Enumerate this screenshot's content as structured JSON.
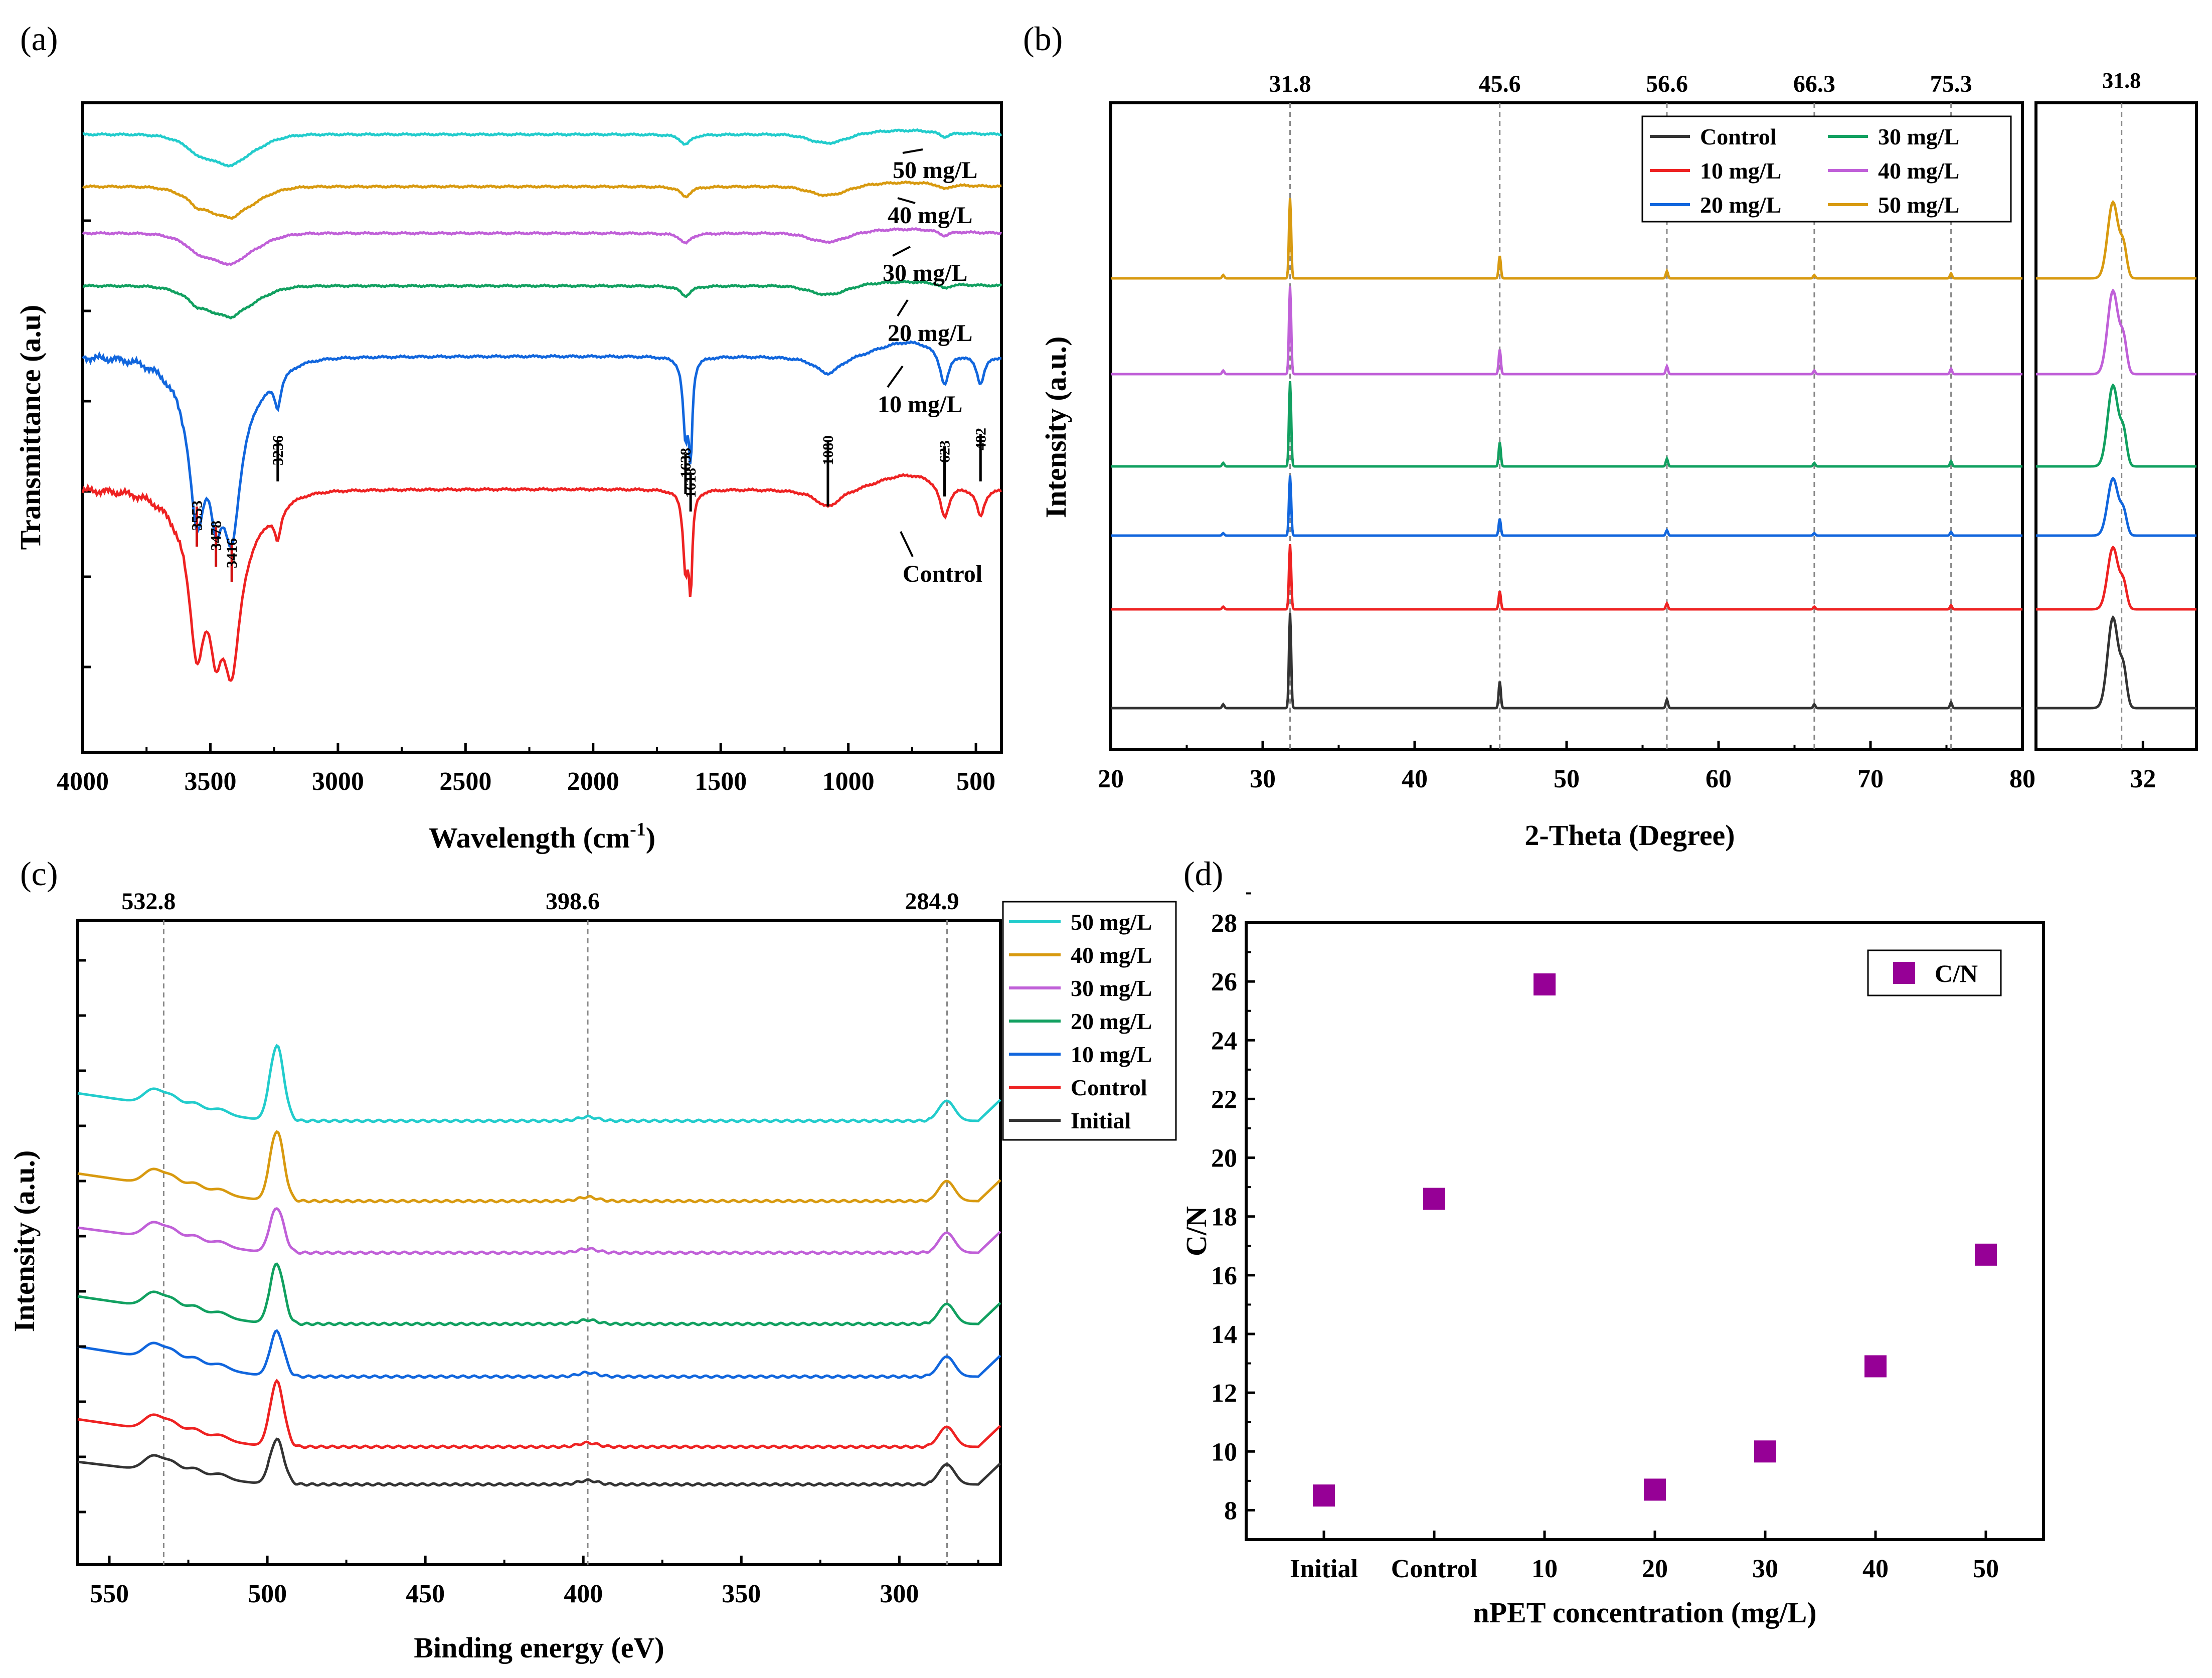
{
  "colors": {
    "control": "#333333",
    "c10": "#ee2222",
    "c20": "#1166dd",
    "c30": "#11a060",
    "c40": "#c060d8",
    "c50": "#d89a10",
    "cyan": "#22cccc",
    "marker": "#960096",
    "grid": "#888888"
  },
  "chart_data": [
    {
      "panel_label": "(a)",
      "type": "line",
      "title": "",
      "xlabel_main": "Wavelength (cm",
      "xlabel_sup": "-1",
      "xlabel_end": ")",
      "ylabel": "Transmittance (a.u)",
      "xlim": [
        4000,
        400
      ],
      "x_ticks": [
        "4000",
        "3500",
        "3000",
        "2500",
        "2000",
        "1500",
        "1000",
        "500"
      ],
      "peak_labels": [
        "3553",
        "3478",
        "3416",
        "3236",
        "1638",
        "1618",
        "1080",
        "623",
        "482"
      ],
      "series": [
        {
          "name": "Control",
          "label": "Control",
          "color_key": "c10"
        },
        {
          "name": "10 mg/L",
          "label": "10 mg/L",
          "color_key": "c20"
        },
        {
          "name": "20 mg/L",
          "label": "20 mg/L",
          "color_key": "c30"
        },
        {
          "name": "30 mg/L",
          "label": "30 mg/L",
          "color_key": "c40"
        },
        {
          "name": "40 mg/L",
          "label": "40 mg/L",
          "color_key": "c50"
        },
        {
          "name": "50 mg/L",
          "label": "50 mg/L",
          "color_key": "cyan"
        }
      ]
    },
    {
      "panel_label": "(b)",
      "type": "line",
      "xlabel": "2-Theta (Degree)",
      "ylabel": "Intensity (a.u.)",
      "xlim": [
        20,
        80
      ],
      "x_ticks": [
        "20",
        "30",
        "40",
        "50",
        "60",
        "70",
        "80"
      ],
      "peak_positions": [
        31.8,
        45.6,
        56.6,
        66.3,
        75.3
      ],
      "peak_labels": [
        "31.8",
        "45.6",
        "56.6",
        "66.3",
        "75.3"
      ],
      "inset_xlim": [
        31.0,
        32.5
      ],
      "inset_ticks": [
        "32"
      ],
      "inset_peak_label": "31.8",
      "legend": [
        "Control",
        "10 mg/L",
        "20 mg/L",
        "30 mg/L",
        "40 mg/L",
        "50 mg/L"
      ],
      "series": [
        {
          "name": "Control",
          "color_key": "control"
        },
        {
          "name": "10 mg/L",
          "color_key": "c10"
        },
        {
          "name": "20 mg/L",
          "color_key": "c20"
        },
        {
          "name": "30 mg/L",
          "color_key": "c30"
        },
        {
          "name": "40 mg/L",
          "color_key": "c40"
        },
        {
          "name": "50 mg/L",
          "color_key": "c50"
        }
      ]
    },
    {
      "panel_label": "(c)",
      "type": "line",
      "xlabel": "Binding energy (eV)",
      "ylabel": "Intensity (a.u.)",
      "xlim": [
        560,
        268
      ],
      "x_ticks": [
        "550",
        "500",
        "450",
        "400",
        "350",
        "300"
      ],
      "peak_positions": [
        532.8,
        398.6,
        284.9
      ],
      "peak_labels": [
        "532.8",
        "398.6",
        "284.9"
      ],
      "legend": [
        "50 mg/L",
        "40 mg/L",
        "30 mg/L",
        "20 mg/L",
        "10 mg/L",
        "Control",
        "Initial"
      ],
      "series": [
        {
          "name": "Initial",
          "color_key": "control"
        },
        {
          "name": "Control",
          "color_key": "c10"
        },
        {
          "name": "10 mg/L",
          "color_key": "c20"
        },
        {
          "name": "20 mg/L",
          "color_key": "c30"
        },
        {
          "name": "30 mg/L",
          "color_key": "c40"
        },
        {
          "name": "40 mg/L",
          "color_key": "c50"
        },
        {
          "name": "50 mg/L",
          "color_key": "cyan"
        }
      ]
    },
    {
      "panel_label": "(d)",
      "type": "scatter",
      "xlabel": "nPET concentration (mg/L)",
      "ylabel": "C/N",
      "ylim": [
        7,
        28
      ],
      "y_ticks": [
        "8",
        "10",
        "12",
        "14",
        "16",
        "18",
        "20",
        "22",
        "24",
        "26",
        "28"
      ],
      "categories": [
        "Initial",
        "Control",
        "10",
        "20",
        "30",
        "40",
        "50"
      ],
      "values": [
        8.5,
        18.6,
        25.9,
        8.7,
        10.0,
        12.9,
        16.7
      ],
      "legend": "C/N"
    }
  ]
}
